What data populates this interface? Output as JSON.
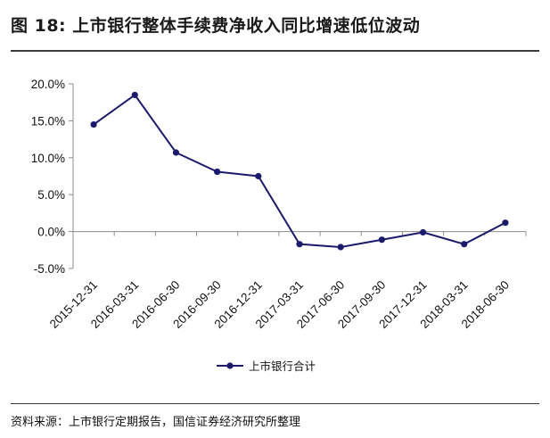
{
  "header": {
    "figure_no": "图 18:",
    "title": "上市银行整体手续费净收入同比增速低位波动"
  },
  "footer": {
    "source": "资料来源：上市银行定期报告，国信证券经济研究所整理"
  },
  "chart_data": {
    "type": "line",
    "categories": [
      "2015-12-31",
      "2016-03-31",
      "2016-06-30",
      "2016-09-30",
      "2016-12-31",
      "2017-03-31",
      "2017-06-30",
      "2017-09-30",
      "2017-12-31",
      "2018-03-31",
      "2018-06-30"
    ],
    "series": [
      {
        "name": "上市银行合计",
        "values": [
          14.5,
          18.5,
          10.7,
          8.1,
          7.5,
          -1.7,
          -2.1,
          -1.1,
          -0.1,
          -1.7,
          1.2
        ]
      }
    ],
    "y_ticks": [
      "20.0%",
      "15.0%",
      "10.0%",
      "5.0%",
      "0.0%",
      "-5.0%"
    ],
    "ylim": [
      -5,
      20
    ],
    "y_unit": "%",
    "legend_position": "bottom-center",
    "grid": false,
    "colors": {
      "series": "#1b1a6b",
      "axis": "#8c8c8c"
    }
  }
}
